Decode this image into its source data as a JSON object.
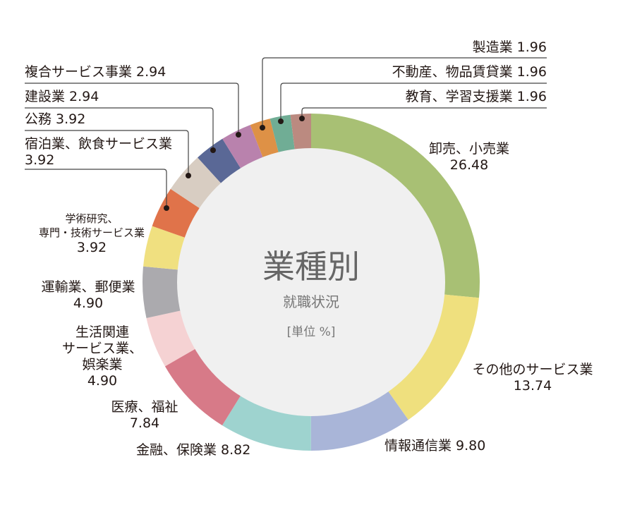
{
  "chart_data": {
    "type": "pie",
    "title": "業種別",
    "subtitle": "就職状況",
    "unit": "[単位 %]",
    "slices": [
      {
        "label": "卸売、小売業",
        "value": 26.48,
        "color": "#a8c074"
      },
      {
        "label": "その他のサービス業",
        "value": 13.74,
        "color": "#efe07e"
      },
      {
        "label": "情報通信業",
        "value": 9.8,
        "color": "#a9b5d8"
      },
      {
        "label": "金融、保険業",
        "value": 8.82,
        "color": "#9ed3cf"
      },
      {
        "label": "医療、福祉",
        "value": 7.84,
        "color": "#d77a88"
      },
      {
        "label": "生活関連サービス業、娯楽業",
        "value": 4.9,
        "color": "#f5d2d3"
      },
      {
        "label": "運輸業、郵便業",
        "value": 4.9,
        "color": "#abaaae"
      },
      {
        "label": "学術研究、専門・技術サービス業",
        "value": 3.92,
        "color": "#f0e080"
      },
      {
        "label": "宿泊業、飲食サービス業",
        "value": 3.92,
        "color": "#e0734a"
      },
      {
        "label": "公務",
        "value": 3.92,
        "color": "#d8cdc2"
      },
      {
        "label": "建設業",
        "value": 2.94,
        "color": "#5a6896"
      },
      {
        "label": "複合サービス事業",
        "value": 2.94,
        "color": "#b982ad"
      },
      {
        "label": "製造業",
        "value": 1.96,
        "color": "#de9146"
      },
      {
        "label": "不動産、物品賃貸業",
        "value": 1.96,
        "color": "#70ad95"
      },
      {
        "label": "教育、学習支援業",
        "value": 1.96,
        "color": "#bb8a80"
      }
    ],
    "display": {
      "l0a": "卸売、小売業",
      "l0b": "26.48",
      "l1a": "その他のサービス業",
      "l1b": "13.74",
      "l2": "情報通信業 9.80",
      "l3": "金融、保険業 8.82",
      "l4a": "医療、福祉",
      "l4b": "7.84",
      "l5a": "生活関連",
      "l5b": "サービス業、",
      "l5c": "娯楽業",
      "l5d": "4.90",
      "l6a": "運輸業、郵便業",
      "l6b": "4.90",
      "l7a": "学術研究、",
      "l7b": "専門・技術サービス業",
      "l7c": "3.92",
      "l8a": "宿泊業、飲食サービス業",
      "l8b": "3.92",
      "l9": "公務 3.92",
      "l10": "建設業 2.94",
      "l11": "複合サービス事業 2.94",
      "l12": "製造業 1.96",
      "l13": "不動産、物品賃貸業 1.96",
      "l14": "教育、学習支援業 1.96"
    }
  }
}
